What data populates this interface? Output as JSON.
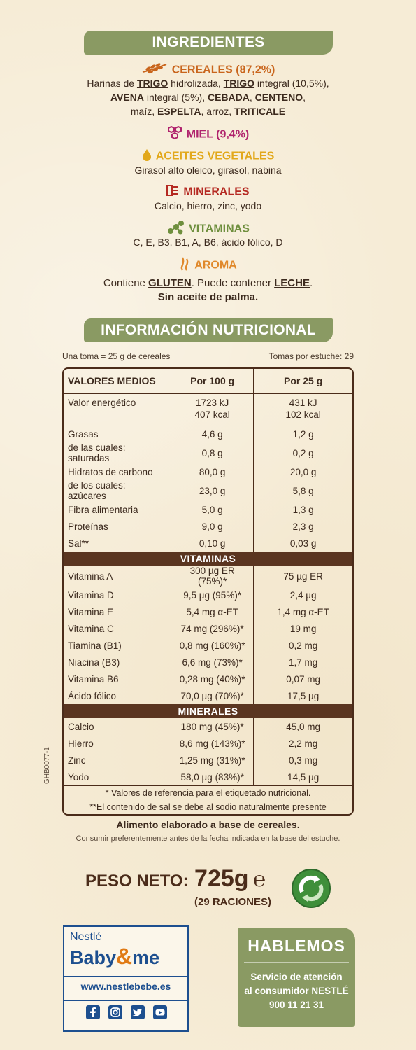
{
  "ingredients": {
    "title": "INGREDIENTES",
    "cereales": {
      "label": "CEREALES (87,2%)",
      "line1": {
        "a": "Harinas de ",
        "b": "TRIGO",
        "c": " hidrolizada, ",
        "d": "TRIGO",
        "e": " integral (10,5%),"
      },
      "line2": {
        "a": "AVENA",
        "b": " integral (5%), ",
        "c": "CEBADA",
        "d": ", ",
        "e": "CENTENO",
        "f": ","
      },
      "line3": {
        "a": "maíz, ",
        "b": "ESPELTA",
        "c": ", arroz, ",
        "d": "TRITICALE"
      }
    },
    "miel": {
      "label": "MIEL (9,4%)"
    },
    "aceites": {
      "label": "ACEITES VEGETALES",
      "text": "Girasol alto oleico, girasol, nabina"
    },
    "minerales": {
      "label": "MINERALES",
      "text": "Calcio, hierro, zinc, yodo"
    },
    "vitaminas": {
      "label": "VITAMINAS",
      "text": "C, E, B3, B1, A, B6, ácido fólico, D"
    },
    "aroma": {
      "label": "AROMA"
    },
    "contains": {
      "a": "Contiene ",
      "b": "GLUTEN",
      "c": ". Puede contener ",
      "d": "LECHE",
      "e": "."
    },
    "palm": "Sin aceite de palma."
  },
  "nutrition": {
    "title": "INFORMACIÓN NUTRICIONAL",
    "serving": "Una toma = 25 g de cereales",
    "per_pack": "Tomas por estuche: 29",
    "headers": [
      "VALORES MEDIOS",
      "Por 100 g",
      "Por 25 g"
    ],
    "energy": {
      "label": "Valor energético",
      "kj100": "1723 kJ",
      "kcal100": "407 kcal",
      "kj25": "431 kJ",
      "kcal25": "102 kcal"
    },
    "rows": [
      [
        "Grasas",
        "4,6 g",
        "1,2 g"
      ],
      [
        "de las cuales: saturadas",
        "0,8 g",
        "0,2 g"
      ],
      [
        "Hidratos de carbono",
        "80,0 g",
        "20,0 g"
      ],
      [
        "de los cuales: azúcares",
        "23,0 g",
        "5,8 g"
      ],
      [
        "Fibra alimentaria",
        "5,0 g",
        "1,3 g"
      ],
      [
        "Proteínas",
        "9,0 g",
        "2,3 g"
      ],
      [
        "Sal**",
        "0,10 g",
        "0,03 g"
      ]
    ],
    "vitamins_title": "VITAMINAS",
    "vitamins": [
      [
        "Vitamina A",
        "300 µg ER (75%)*",
        "75 µg ER"
      ],
      [
        "Vitamina D",
        "9,5 µg (95%)*",
        "2,4 µg"
      ],
      [
        "Vitamina E",
        "5,4 mg α-ET",
        "1,4 mg α-ET"
      ],
      [
        "Vitamina C",
        "74 mg (296%)*",
        "19 mg"
      ],
      [
        "Tiamina (B1)",
        "0,8 mg (160%)*",
        "0,2 mg"
      ],
      [
        "Niacina (B3)",
        "6,6 mg (73%)*",
        "1,7 mg"
      ],
      [
        "Vitamina B6",
        "0,28 mg (40%)*",
        "0,07 mg"
      ],
      [
        "Ácido fólico",
        "70,0 µg (70%)*",
        "17,5 µg"
      ]
    ],
    "minerals_title": "MINERALES",
    "minerals": [
      [
        "Calcio",
        "180 mg (45%)*",
        "45,0 mg"
      ],
      [
        "Hierro",
        "8,6 mg (143%)*",
        "2,2 mg"
      ],
      [
        "Zinc",
        "1,25 mg (31%)*",
        "0,3 mg"
      ],
      [
        "Yodo",
        "58,0 µg (83%)*",
        "14,5 µg"
      ]
    ],
    "foot1": "* Valores de referencia para el etiquetado nutricional.",
    "foot2": "**El contenido de sal se debe al sodio naturalmente presente"
  },
  "side_code": "GHB0077-1",
  "food_desc": "Alimento elaborado a base de cereales.",
  "best_before": "Consumir preferentemente antes de la fecha indicada en la base del estuche.",
  "weight": {
    "label": "PESO NETO:",
    "value": "725g",
    "e_mark": "℮",
    "portions": "(29 RACIONES)"
  },
  "brand": {
    "nestle": "Nestlé",
    "baby": "Baby",
    "amp": "&",
    "me": "me",
    "url": "www.nestlebebe.es"
  },
  "contact": {
    "title": "HABLEMOS",
    "line1": "Servicio de atención",
    "line2": "al consumidor NESTLÉ",
    "phone": "900 11 21 31"
  },
  "colors": {
    "green": "#8a9a63",
    "brown": "#5a3520",
    "orange": "#c9651c",
    "magenta": "#b0236d",
    "yellow": "#e2a81b",
    "red": "#b52a22",
    "nestle_blue": "#1d4f8f"
  }
}
